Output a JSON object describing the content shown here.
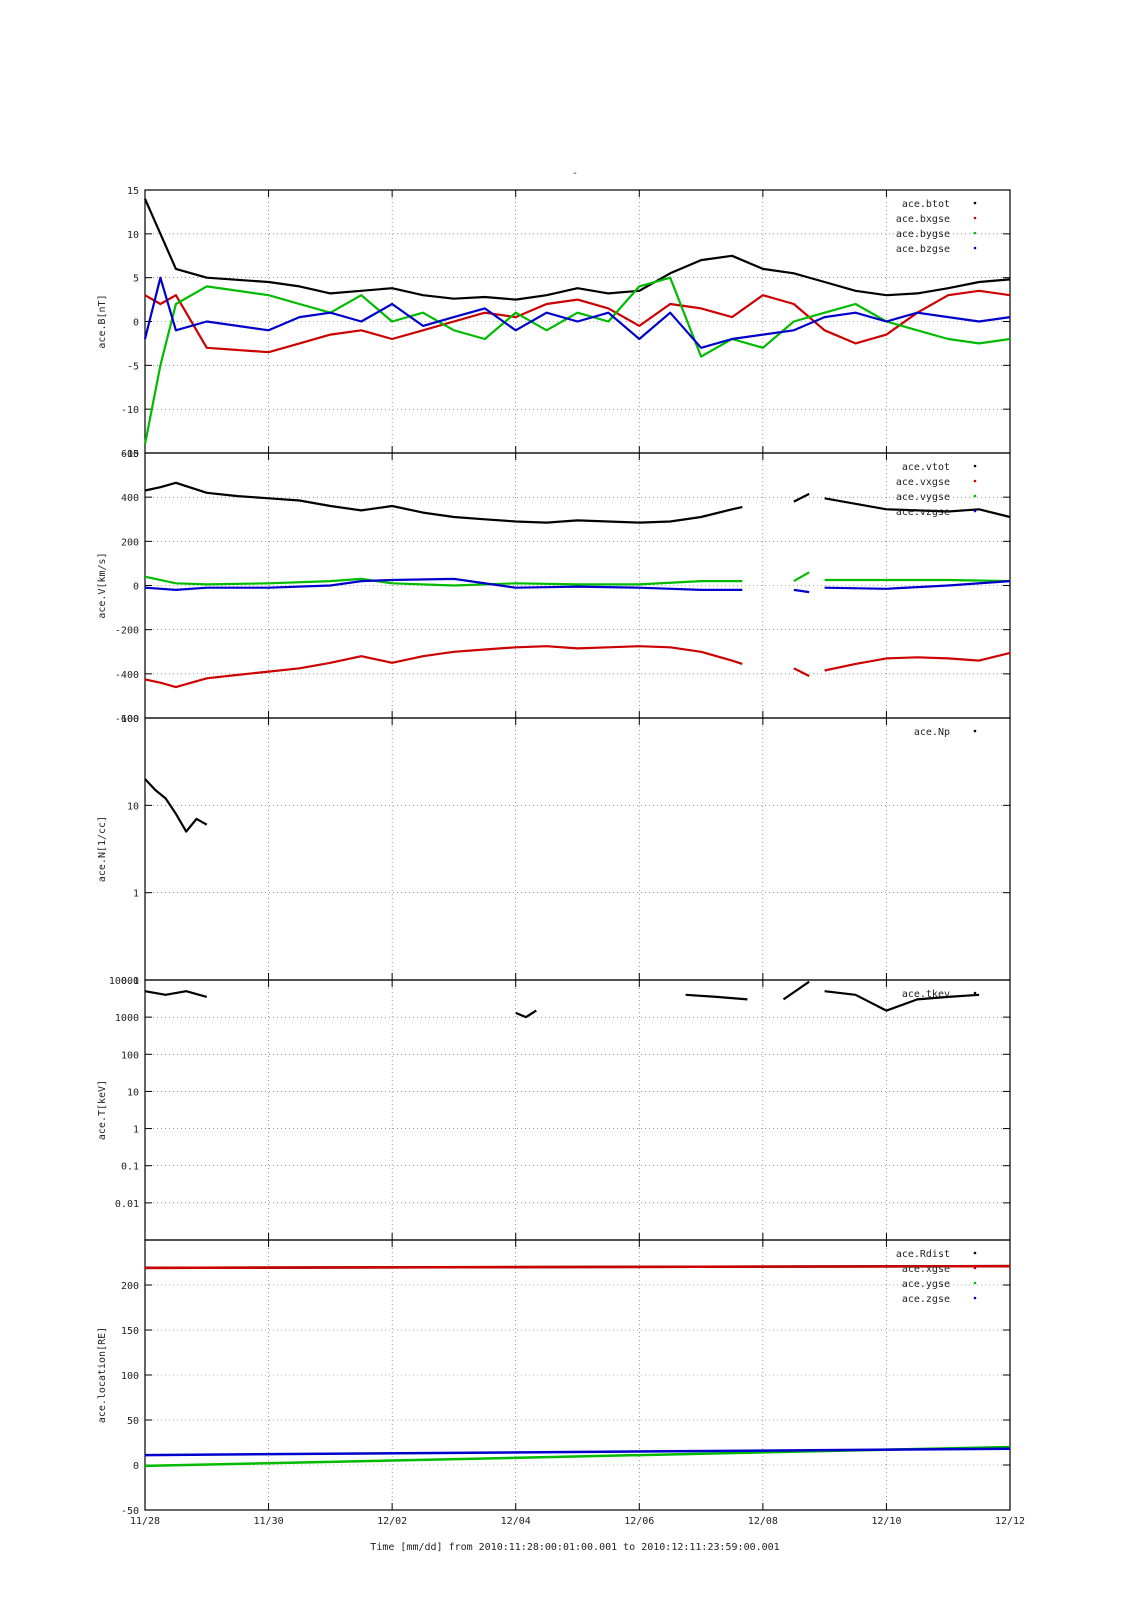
{
  "figure": {
    "title": "-",
    "footer": "Time [mm/dd]  from 2010:11:28:00:01:00.001  to  2010:12:11:23:59:00.001"
  },
  "x_axis": {
    "range": [
      "2010-11-28",
      "2010-12-12"
    ],
    "ticks": [
      "2010-11-28",
      "2010-11-30",
      "2010-12-02",
      "2010-12-04",
      "2010-12-06",
      "2010-12-08",
      "2010-12-10",
      "2010-12-12"
    ],
    "tick_labels": [
      "11/28",
      "11/30",
      "12/02",
      "12/04",
      "12/06",
      "12/08",
      "12/10",
      "12/12"
    ]
  },
  "chart_data": [
    {
      "type": "scatter",
      "ylabel": "ace.B[nT]",
      "ylim": [
        -15,
        15
      ],
      "yscale": "linear",
      "yticks": [
        -15,
        -10,
        -5,
        0,
        5,
        10,
        15
      ],
      "grid": true,
      "legend": "top-right",
      "series": [
        {
          "name": "ace.btot",
          "color": "#000000",
          "x": [
            "2010-11-28 00:00",
            "2010-11-28 06:00",
            "2010-11-28 12:00",
            "2010-11-29 00:00",
            "2010-11-30 00:00",
            "2010-11-30 12:00",
            "2010-12-01 00:00",
            "2010-12-01 12:00",
            "2010-12-02 00:00",
            "2010-12-02 12:00",
            "2010-12-03 00:00",
            "2010-12-03 12:00",
            "2010-12-04 00:00",
            "2010-12-04 12:00",
            "2010-12-05 00:00",
            "2010-12-05 12:00",
            "2010-12-06 00:00",
            "2010-12-06 12:00",
            "2010-12-07 00:00",
            "2010-12-07 12:00",
            "2010-12-08 00:00",
            "2010-12-08 12:00",
            "2010-12-09 00:00",
            "2010-12-09 12:00",
            "2010-12-10 00:00",
            "2010-12-10 12:00",
            "2010-12-11 00:00",
            "2010-12-11 12:00",
            "2010-12-12 00:00"
          ],
          "y": [
            14,
            10,
            6,
            5,
            4.5,
            4,
            3.2,
            3.5,
            3.8,
            3,
            2.6,
            2.8,
            2.5,
            3,
            3.8,
            3.2,
            3.5,
            5.5,
            7,
            7.5,
            6,
            5.5,
            4.5,
            3.5,
            3,
            3.2,
            3.8,
            4.5,
            4.8
          ]
        },
        {
          "name": "ace.bxgse",
          "color": "#cc0000",
          "x": [
            "2010-11-28 00:00",
            "2010-11-28 06:00",
            "2010-11-28 12:00",
            "2010-11-29 00:00",
            "2010-11-30 00:00",
            "2010-11-30 12:00",
            "2010-12-01 00:00",
            "2010-12-01 12:00",
            "2010-12-02 00:00",
            "2010-12-02 12:00",
            "2010-12-03 00:00",
            "2010-12-03 12:00",
            "2010-12-04 00:00",
            "2010-12-04 12:00",
            "2010-12-05 00:00",
            "2010-12-05 12:00",
            "2010-12-06 00:00",
            "2010-12-06 12:00",
            "2010-12-07 00:00",
            "2010-12-07 12:00",
            "2010-12-08 00:00",
            "2010-12-08 12:00",
            "2010-12-09 00:00",
            "2010-12-09 12:00",
            "2010-12-10 00:00",
            "2010-12-10 12:00",
            "2010-12-11 00:00",
            "2010-12-11 12:00",
            "2010-12-12 00:00"
          ],
          "y": [
            3,
            2,
            3,
            -3,
            -3.5,
            -2.5,
            -1.5,
            -1,
            -2,
            -1,
            0,
            1,
            0.5,
            2,
            2.5,
            1.5,
            -0.5,
            2,
            1.5,
            0.5,
            3,
            2,
            -1,
            -2.5,
            -1.5,
            1,
            3,
            3.5,
            3
          ]
        },
        {
          "name": "ace.bygse",
          "color": "#00bb00",
          "x": [
            "2010-11-28 00:00",
            "2010-11-28 06:00",
            "2010-11-28 12:00",
            "2010-11-29 00:00",
            "2010-11-30 00:00",
            "2010-11-30 12:00",
            "2010-12-01 00:00",
            "2010-12-01 12:00",
            "2010-12-02 00:00",
            "2010-12-02 12:00",
            "2010-12-03 00:00",
            "2010-12-03 12:00",
            "2010-12-04 00:00",
            "2010-12-04 12:00",
            "2010-12-05 00:00",
            "2010-12-05 12:00",
            "2010-12-06 00:00",
            "2010-12-06 12:00",
            "2010-12-07 00:00",
            "2010-12-07 12:00",
            "2010-12-08 00:00",
            "2010-12-08 12:00",
            "2010-12-09 00:00",
            "2010-12-09 12:00",
            "2010-12-10 00:00",
            "2010-12-10 12:00",
            "2010-12-11 00:00",
            "2010-12-11 12:00",
            "2010-12-12 00:00"
          ],
          "y": [
            -14,
            -5,
            2,
            4,
            3,
            2,
            1,
            3,
            0,
            1,
            -1,
            -2,
            1,
            -1,
            1,
            0,
            4,
            5,
            -4,
            -2,
            -3,
            0,
            1,
            2,
            0,
            -1,
            -2,
            -2.5,
            -2
          ]
        },
        {
          "name": "ace.bzgse",
          "color": "#0000cc",
          "x": [
            "2010-11-28 00:00",
            "2010-11-28 06:00",
            "2010-11-28 12:00",
            "2010-11-29 00:00",
            "2010-11-30 00:00",
            "2010-11-30 12:00",
            "2010-12-01 00:00",
            "2010-12-01 12:00",
            "2010-12-02 00:00",
            "2010-12-02 12:00",
            "2010-12-03 00:00",
            "2010-12-03 12:00",
            "2010-12-04 00:00",
            "2010-12-04 12:00",
            "2010-12-05 00:00",
            "2010-12-05 12:00",
            "2010-12-06 00:00",
            "2010-12-06 12:00",
            "2010-12-07 00:00",
            "2010-12-07 12:00",
            "2010-12-08 00:00",
            "2010-12-08 12:00",
            "2010-12-09 00:00",
            "2010-12-09 12:00",
            "2010-12-10 00:00",
            "2010-12-10 12:00",
            "2010-12-11 00:00",
            "2010-12-11 12:00",
            "2010-12-12 00:00"
          ],
          "y": [
            -2,
            5,
            -1,
            0,
            -1,
            0.5,
            1,
            0,
            2,
            -0.5,
            0.5,
            1.5,
            -1,
            1,
            0,
            1,
            -2,
            1,
            -3,
            -2,
            -1.5,
            -1,
            0.5,
            1,
            0,
            1,
            0.5,
            0,
            0.5
          ]
        }
      ]
    },
    {
      "type": "scatter",
      "ylabel": "ace.V[km/s]",
      "ylim": [
        -600,
        600
      ],
      "yscale": "linear",
      "yticks": [
        -600,
        -400,
        -200,
        0,
        200,
        400,
        600
      ],
      "grid": true,
      "legend": "top-right",
      "series": [
        {
          "name": "ace.vtot",
          "color": "#000000",
          "x": [
            "2010-11-28 00:00",
            "2010-11-28 06:00",
            "2010-11-28 12:00",
            "2010-11-29 00:00",
            "2010-11-29 12:00",
            "2010-11-30 00:00",
            "2010-11-30 12:00",
            "2010-12-01 00:00",
            "2010-12-01 12:00",
            "2010-12-02 00:00",
            "2010-12-02 12:00",
            "2010-12-03 00:00",
            "2010-12-03 12:00",
            "2010-12-04 00:00",
            "2010-12-04 12:00",
            "2010-12-05 00:00",
            "2010-12-05 12:00",
            "2010-12-06 00:00",
            "2010-12-06 12:00",
            "2010-12-07 00:00",
            "2010-12-07 12:00",
            "2010-12-07 16:00",
            null,
            "2010-12-08 12:00",
            "2010-12-08 18:00",
            null,
            "2010-12-09 00:00",
            "2010-12-09 12:00",
            "2010-12-10 00:00",
            "2010-12-10 12:00",
            "2010-12-11 00:00",
            "2010-12-11 12:00",
            "2010-12-12 00:00"
          ],
          "y": [
            430,
            445,
            465,
            420,
            405,
            395,
            385,
            360,
            340,
            360,
            330,
            310,
            300,
            290,
            285,
            295,
            290,
            285,
            290,
            310,
            345,
            355,
            null,
            380,
            415,
            null,
            395,
            370,
            345,
            340,
            335,
            345,
            310
          ]
        },
        {
          "name": "ace.vxgse",
          "color": "#cc0000",
          "x": [
            "2010-11-28 00:00",
            "2010-11-28 06:00",
            "2010-11-28 12:00",
            "2010-11-29 00:00",
            "2010-11-29 12:00",
            "2010-11-30 00:00",
            "2010-11-30 12:00",
            "2010-12-01 00:00",
            "2010-12-01 12:00",
            "2010-12-02 00:00",
            "2010-12-02 12:00",
            "2010-12-03 00:00",
            "2010-12-03 12:00",
            "2010-12-04 00:00",
            "2010-12-04 12:00",
            "2010-12-05 00:00",
            "2010-12-05 12:00",
            "2010-12-06 00:00",
            "2010-12-06 12:00",
            "2010-12-07 00:00",
            "2010-12-07 12:00",
            "2010-12-07 16:00",
            null,
            "2010-12-08 12:00",
            "2010-12-08 18:00",
            null,
            "2010-12-09 00:00",
            "2010-12-09 12:00",
            "2010-12-10 00:00",
            "2010-12-10 12:00",
            "2010-12-11 00:00",
            "2010-12-11 12:00",
            "2010-12-12 00:00"
          ],
          "y": [
            -425,
            -440,
            -460,
            -420,
            -405,
            -390,
            -375,
            -350,
            -320,
            -350,
            -320,
            -300,
            -290,
            -280,
            -275,
            -285,
            -280,
            -275,
            -280,
            -300,
            -340,
            -355,
            null,
            -375,
            -410,
            null,
            -385,
            -355,
            -330,
            -325,
            -330,
            -340,
            -305
          ]
        },
        {
          "name": "ace.vygse",
          "color": "#00bb00",
          "x": [
            "2010-11-28 00:00",
            "2010-11-28 12:00",
            "2010-11-29 00:00",
            "2010-11-30 00:00",
            "2010-12-01 00:00",
            "2010-12-01 12:00",
            "2010-12-02 00:00",
            "2010-12-03 00:00",
            "2010-12-04 00:00",
            "2010-12-05 00:00",
            "2010-12-06 00:00",
            "2010-12-07 00:00",
            "2010-12-07 16:00",
            null,
            "2010-12-08 12:00",
            "2010-12-08 18:00",
            null,
            "2010-12-09 00:00",
            "2010-12-10 00:00",
            "2010-12-11 00:00",
            "2010-12-12 00:00"
          ],
          "y": [
            40,
            10,
            5,
            10,
            20,
            30,
            10,
            0,
            10,
            5,
            5,
            20,
            20,
            null,
            20,
            60,
            null,
            25,
            25,
            25,
            20
          ]
        },
        {
          "name": "ace.vzgse",
          "color": "#0000cc",
          "x": [
            "2010-11-28 00:00",
            "2010-11-28 12:00",
            "2010-11-29 00:00",
            "2010-11-30 00:00",
            "2010-12-01 00:00",
            "2010-12-01 12:00",
            "2010-12-02 00:00",
            "2010-12-03 00:00",
            "2010-12-04 00:00",
            "2010-12-05 00:00",
            "2010-12-06 00:00",
            "2010-12-07 00:00",
            "2010-12-07 16:00",
            null,
            "2010-12-08 12:00",
            "2010-12-08 18:00",
            null,
            "2010-12-09 00:00",
            "2010-12-10 00:00",
            "2010-12-11 00:00",
            "2010-12-12 00:00"
          ],
          "y": [
            -10,
            -20,
            -10,
            -10,
            0,
            20,
            25,
            30,
            -10,
            -5,
            -10,
            -20,
            -20,
            null,
            -20,
            -30,
            null,
            -10,
            -15,
            0,
            20
          ]
        }
      ]
    },
    {
      "type": "scatter",
      "ylabel": "ace.N[1/cc]",
      "ylim": [
        0.1,
        100
      ],
      "yscale": "log",
      "yticks": [
        0.1,
        1,
        10,
        100
      ],
      "grid": true,
      "legend": "top-right",
      "series": [
        {
          "name": "ace.Np",
          "color": "#000000",
          "x": [
            "2010-11-28 00:00",
            "2010-11-28 04:00",
            "2010-11-28 08:00",
            "2010-11-28 12:00",
            "2010-11-28 16:00",
            "2010-11-28 20:00",
            "2010-11-29 00:00"
          ],
          "y": [
            20,
            15,
            12,
            8,
            5,
            7,
            6
          ]
        }
      ]
    },
    {
      "type": "scatter",
      "ylabel": "ace.T[keV]",
      "ylim": [
        0.001,
        10000
      ],
      "yscale": "log",
      "yticks": [
        0.01,
        0.1,
        1,
        10,
        100,
        1000,
        10000
      ],
      "grid": true,
      "legend": "top-right",
      "series": [
        {
          "name": "ace.tkev",
          "color": "#000000",
          "x": [
            "2010-11-28 00:00",
            "2010-11-28 08:00",
            "2010-11-28 16:00",
            "2010-11-29 00:00",
            null,
            "2010-12-04 00:00",
            "2010-12-04 04:00",
            "2010-12-04 08:00",
            null,
            "2010-12-06 18:00",
            "2010-12-07 06:00",
            "2010-12-07 18:00",
            null,
            "2010-12-08 08:00",
            "2010-12-08 18:00",
            null,
            "2010-12-09 00:00",
            "2010-12-09 12:00",
            "2010-12-10 00:00",
            "2010-12-10 12:00",
            "2010-12-11 00:00",
            "2010-12-11 12:00"
          ],
          "y": [
            5000,
            4000,
            5000,
            3500,
            null,
            1300,
            1000,
            1500,
            null,
            4000,
            3500,
            3000,
            null,
            3000,
            9000,
            null,
            5000,
            4000,
            1500,
            3000,
            3500,
            4000
          ]
        }
      ]
    },
    {
      "type": "line",
      "ylabel": "ace.location[RE]",
      "ylim": [
        -50,
        250
      ],
      "yscale": "linear",
      "yticks": [
        -50,
        0,
        50,
        100,
        150,
        200
      ],
      "grid": true,
      "legend": "top-right",
      "series": [
        {
          "name": "ace.Rdist",
          "color": "#000000",
          "x": [
            "2010-11-28 00:00",
            "2010-12-12 00:00"
          ],
          "y": [
            219,
            221
          ]
        },
        {
          "name": "ace.xgse",
          "color": "#cc0000",
          "x": [
            "2010-11-28 00:00",
            "2010-12-12 00:00"
          ],
          "y": [
            219,
            221
          ]
        },
        {
          "name": "ace.ygse",
          "color": "#00bb00",
          "x": [
            "2010-11-28 00:00",
            "2010-12-12 00:00"
          ],
          "y": [
            -1,
            20
          ]
        },
        {
          "name": "ace.zgse",
          "color": "#0000cc",
          "x": [
            "2010-11-28 00:00",
            "2010-12-12 00:00"
          ],
          "y": [
            11,
            18
          ]
        }
      ]
    }
  ]
}
